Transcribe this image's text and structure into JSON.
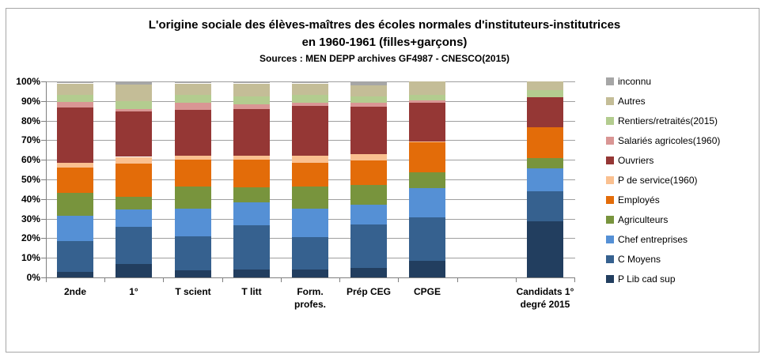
{
  "title": {
    "line1": "L'origine sociale des élèves-maîtres des écoles normales d'instituteurs-institutrices",
    "line2": "en 1960-1961 (filles+garçons)",
    "sources": "Sources : MEN DEPP archives GF4987 - CNESCO(2015)"
  },
  "chart_data": {
    "type": "bar",
    "variant": "100%-stacked-column",
    "units": "percent",
    "categories": [
      "2nde",
      "1°",
      "T scient",
      "T litt",
      "Form.\nprofes.",
      "Prép CEG",
      "CPGE",
      "",
      "Candidats 1°\ndegré 2015"
    ],
    "series": [
      {
        "name": "P Lib cad sup",
        "color": "#223E5F",
        "values": [
          3,
          7,
          3.5,
          4,
          4,
          5,
          8.5,
          0,
          28.5
        ]
      },
      {
        "name": "C Moyens",
        "color": "#36618F",
        "values": [
          15.5,
          19,
          17.5,
          22.5,
          16.5,
          22,
          22,
          0,
          15.5
        ]
      },
      {
        "name": "Chef entreprises",
        "color": "#5590D5",
        "values": [
          13,
          8.5,
          14,
          12,
          14.5,
          10,
          15,
          0,
          11.5
        ]
      },
      {
        "name": "Agriculteurs",
        "color": "#78943D",
        "values": [
          11.5,
          6.5,
          11.5,
          7.5,
          11.5,
          10,
          8,
          0,
          5.5
        ]
      },
      {
        "name": "Employés",
        "color": "#E36C09",
        "values": [
          13,
          17,
          13.5,
          14,
          12,
          12.5,
          15.5,
          0,
          15.5
        ]
      },
      {
        "name": "P de service(1960)",
        "color": "#FAC090",
        "values": [
          2.5,
          3.5,
          2,
          2,
          3.5,
          3.5,
          0.5,
          0,
          0
        ]
      },
      {
        "name": "Ouvriers",
        "color": "#953735",
        "values": [
          28,
          23,
          23.5,
          24,
          25.5,
          24,
          19.5,
          0,
          15.5
        ]
      },
      {
        "name": "Salariés agricoles(1960)",
        "color": "#D99694",
        "values": [
          3,
          1.5,
          3.5,
          2.5,
          1.5,
          2,
          1.5,
          0,
          0
        ]
      },
      {
        "name": "Rentiers/retraités(2015)",
        "color": "#B3CC8F",
        "values": [
          3.5,
          4,
          4,
          4,
          4,
          3.5,
          2.5,
          0,
          3.5
        ]
      },
      {
        "name": "Autres",
        "color": "#C4BD97",
        "values": [
          6,
          8.5,
          6,
          6.5,
          6,
          5.5,
          7,
          0,
          4.5
        ]
      },
      {
        "name": "inconnu",
        "color": "#A6A6A6",
        "values": [
          1,
          1.5,
          1,
          1,
          1,
          2,
          0,
          0,
          0
        ]
      }
    ],
    "yticks": [
      "0%",
      "10%",
      "20%",
      "30%",
      "40%",
      "50%",
      "60%",
      "70%",
      "80%",
      "90%",
      "100%"
    ],
    "ylim": [
      0,
      100
    ],
    "xlabel": "",
    "ylabel": "",
    "grid": true,
    "legend_position": "right",
    "legend_order_top_to_bottom": [
      "inconnu",
      "Autres",
      "Rentiers/retraités(2015)",
      "Salariés agricoles(1960)",
      "Ouvriers",
      "P de service(1960)",
      "Employés",
      "Agriculteurs",
      "Chef entreprises",
      "C Moyens",
      "P Lib cad sup"
    ]
  }
}
